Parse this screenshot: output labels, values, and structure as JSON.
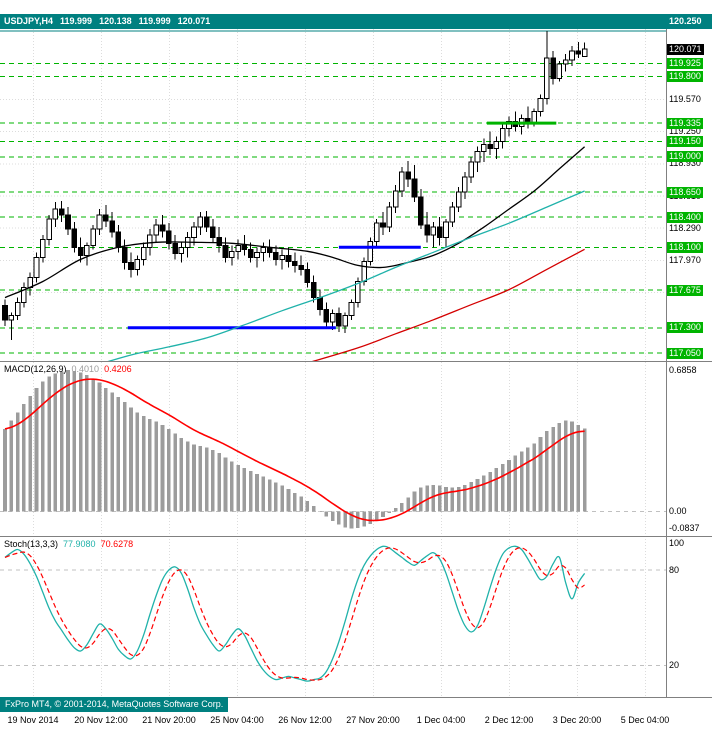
{
  "window": {
    "symbol": "USDJPY,H4",
    "open": "119.999",
    "high": "120.138",
    "low": "119.999",
    "close": "120.071",
    "ask_label": "120.250"
  },
  "colors": {
    "teal": "#008080",
    "level_green": "#00B400",
    "trend_blue": "#0000FF",
    "signal_red": "#FF0000",
    "ma_black": "#000000",
    "ma_green": "#20B2AA",
    "ma_red": "#D40000",
    "macd_bar": "#9C9C9C",
    "stoch_main": "#20B2AA",
    "grid": "#DCDCDC",
    "silver_level": "#C0C0C0",
    "panel_border": "#808080",
    "bar_up_fill": "#FFFFFF",
    "bar_down_fill": "#000000"
  },
  "chart_data": [
    {
      "type": "candlestick",
      "symbol": "USDJPY",
      "timeframe": "H4",
      "ylim": [
        116.97,
        120.27
      ],
      "y_ticks": [
        119.57,
        119.25,
        118.93,
        118.61,
        118.29,
        117.97,
        117.65
      ],
      "level_lines": [
        119.925,
        119.8,
        119.335,
        119.15,
        119.0,
        118.65,
        118.4,
        118.1,
        117.675,
        117.3,
        117.05
      ],
      "ask_line": 120.25,
      "bid_price": 120.071,
      "candles_ohlc": [
        [
          117.52,
          117.58,
          117.32,
          117.38
        ],
        [
          117.38,
          117.45,
          117.18,
          117.42
        ],
        [
          117.42,
          117.6,
          117.38,
          117.55
        ],
        [
          117.55,
          117.75,
          117.5,
          117.7
        ],
        [
          117.7,
          117.85,
          117.62,
          117.8
        ],
        [
          117.8,
          118.05,
          117.75,
          118.0
        ],
        [
          118.0,
          118.22,
          117.95,
          118.18
        ],
        [
          118.18,
          118.42,
          118.12,
          118.38
        ],
        [
          118.38,
          118.55,
          118.3,
          118.48
        ],
        [
          118.48,
          118.56,
          118.35,
          118.42
        ],
        [
          118.42,
          118.5,
          118.22,
          118.28
        ],
        [
          118.28,
          118.35,
          118.05,
          118.1
        ],
        [
          118.1,
          118.2,
          117.95,
          118.02
        ],
        [
          118.02,
          118.15,
          117.92,
          118.12
        ],
        [
          118.12,
          118.32,
          118.08,
          118.28
        ],
        [
          118.28,
          118.48,
          118.22,
          118.42
        ],
        [
          118.42,
          118.52,
          118.3,
          118.36
        ],
        [
          118.36,
          118.45,
          118.2,
          118.25
        ],
        [
          118.25,
          118.32,
          118.05,
          118.1
        ],
        [
          118.1,
          118.18,
          117.88,
          117.95
        ],
        [
          117.95,
          118.05,
          117.8,
          117.88
        ],
        [
          117.88,
          118.02,
          117.82,
          117.98
        ],
        [
          117.98,
          118.15,
          117.92,
          118.1
        ],
        [
          118.1,
          118.28,
          118.02,
          118.22
        ],
        [
          118.22,
          118.38,
          118.15,
          118.32
        ],
        [
          118.32,
          118.42,
          118.2,
          118.26
        ],
        [
          118.26,
          118.34,
          118.08,
          118.14
        ],
        [
          118.14,
          118.22,
          117.98,
          118.04
        ],
        [
          118.04,
          118.16,
          117.95,
          118.1
        ],
        [
          118.1,
          118.25,
          118.0,
          118.2
        ],
        [
          118.2,
          118.35,
          118.12,
          118.3
        ],
        [
          118.3,
          118.45,
          118.22,
          118.4
        ],
        [
          118.4,
          118.46,
          118.25,
          118.3
        ],
        [
          118.3,
          118.38,
          118.15,
          118.2
        ],
        [
          118.2,
          118.3,
          118.05,
          118.12
        ],
        [
          118.12,
          118.2,
          117.95,
          118.0
        ],
        [
          118.0,
          118.12,
          117.92,
          118.06
        ],
        [
          118.06,
          118.18,
          117.98,
          118.12
        ],
        [
          118.12,
          118.22,
          118.02,
          118.08
        ],
        [
          118.08,
          118.15,
          117.95,
          118.0
        ],
        [
          118.0,
          118.1,
          117.9,
          118.05
        ],
        [
          118.05,
          118.15,
          117.96,
          118.1
        ],
        [
          118.1,
          118.18,
          118.0,
          118.05
        ],
        [
          118.05,
          118.12,
          117.92,
          117.98
        ],
        [
          117.98,
          118.08,
          117.88,
          118.02
        ],
        [
          118.02,
          118.1,
          117.9,
          117.96
        ],
        [
          117.96,
          118.05,
          117.85,
          117.92
        ],
        [
          117.92,
          118.02,
          117.82,
          117.88
        ],
        [
          117.88,
          117.95,
          117.7,
          117.75
        ],
        [
          117.75,
          117.82,
          117.55,
          117.6
        ],
        [
          117.6,
          117.68,
          117.42,
          117.48
        ],
        [
          117.48,
          117.55,
          117.3,
          117.36
        ],
        [
          117.36,
          117.48,
          117.28,
          117.44
        ],
        [
          117.44,
          117.5,
          117.26,
          117.32
        ],
        [
          117.32,
          117.45,
          117.25,
          117.42
        ],
        [
          117.42,
          117.58,
          117.38,
          117.55
        ],
        [
          117.55,
          117.8,
          117.5,
          117.76
        ],
        [
          117.76,
          118.0,
          117.72,
          117.96
        ],
        [
          117.96,
          118.2,
          117.92,
          118.16
        ],
        [
          118.16,
          118.38,
          118.1,
          118.34
        ],
        [
          118.34,
          118.45,
          118.22,
          118.3
        ],
        [
          118.3,
          118.55,
          118.25,
          118.5
        ],
        [
          118.5,
          118.72,
          118.44,
          118.66
        ],
        [
          118.66,
          118.9,
          118.6,
          118.85
        ],
        [
          118.85,
          118.96,
          118.7,
          118.78
        ],
        [
          118.78,
          118.92,
          118.55,
          118.6
        ],
        [
          118.6,
          118.68,
          118.28,
          118.32
        ],
        [
          118.32,
          118.45,
          118.15,
          118.22
        ],
        [
          118.22,
          118.35,
          118.1,
          118.3
        ],
        [
          118.3,
          118.4,
          118.12,
          118.2
        ],
        [
          118.2,
          118.38,
          118.1,
          118.35
        ],
        [
          118.35,
          118.55,
          118.3,
          118.5
        ],
        [
          118.5,
          118.7,
          118.45,
          118.65
        ],
        [
          118.65,
          118.85,
          118.58,
          118.8
        ],
        [
          118.8,
          119.0,
          118.74,
          118.95
        ],
        [
          118.95,
          119.1,
          118.85,
          119.05
        ],
        [
          119.05,
          119.18,
          118.95,
          119.12
        ],
        [
          119.12,
          119.25,
          119.02,
          119.08
        ],
        [
          119.08,
          119.2,
          118.98,
          119.15
        ],
        [
          119.15,
          119.32,
          119.08,
          119.28
        ],
        [
          119.28,
          119.4,
          119.2,
          119.35
        ],
        [
          119.35,
          119.45,
          119.25,
          119.3
        ],
        [
          119.3,
          119.42,
          119.22,
          119.38
        ],
        [
          119.38,
          119.5,
          119.28,
          119.33
        ],
        [
          119.33,
          119.48,
          119.3,
          119.45
        ],
        [
          119.45,
          119.62,
          119.4,
          119.58
        ],
        [
          119.58,
          120.25,
          119.52,
          119.98
        ],
        [
          119.98,
          120.05,
          119.72,
          119.78
        ],
        [
          119.78,
          119.95,
          119.75,
          119.92
        ],
        [
          119.92,
          120.02,
          119.85,
          119.96
        ],
        [
          119.96,
          120.1,
          119.9,
          120.05
        ],
        [
          120.05,
          120.14,
          119.98,
          120.02
        ],
        [
          119.999,
          120.138,
          119.999,
          120.071
        ]
      ],
      "moving_averages": [
        {
          "name": "ma-fast-black",
          "color_key": "ma_black",
          "points": [
            [
              0,
              117.6
            ],
            [
              6,
              117.76
            ],
            [
              12,
              117.98
            ],
            [
              18,
              118.1
            ],
            [
              24,
              118.15
            ],
            [
              30,
              118.15
            ],
            [
              36,
              118.14
            ],
            [
              42,
              118.1
            ],
            [
              48,
              118.06
            ],
            [
              52,
              118.0
            ],
            [
              56,
              117.92
            ],
            [
              60,
              117.9
            ],
            [
              64,
              117.95
            ],
            [
              68,
              118.02
            ],
            [
              72,
              118.14
            ],
            [
              76,
              118.3
            ],
            [
              80,
              118.48
            ],
            [
              84,
              118.66
            ],
            [
              88,
              118.88
            ],
            [
              92,
              119.1
            ]
          ]
        },
        {
          "name": "ma-mid-green",
          "color_key": "ma_green",
          "points": [
            [
              14,
              116.92
            ],
            [
              20,
              117.03
            ],
            [
              26,
              117.11
            ],
            [
              32,
              117.2
            ],
            [
              38,
              117.33
            ],
            [
              44,
              117.47
            ],
            [
              50,
              117.6
            ],
            [
              56,
              117.74
            ],
            [
              62,
              117.9
            ],
            [
              68,
              118.05
            ],
            [
              74,
              118.2
            ],
            [
              80,
              118.34
            ],
            [
              86,
              118.5
            ],
            [
              92,
              118.66
            ]
          ]
        },
        {
          "name": "ma-slow-red",
          "color_key": "ma_red",
          "points": [
            [
              48,
              116.95
            ],
            [
              56,
              117.1
            ],
            [
              62,
              117.24
            ],
            [
              68,
              117.38
            ],
            [
              74,
              117.53
            ],
            [
              80,
              117.68
            ],
            [
              86,
              117.88
            ],
            [
              92,
              118.08
            ]
          ]
        }
      ],
      "trendlines": [
        {
          "name": "support-117300",
          "price": 117.3,
          "from_index": 19.5,
          "to_index": 52.5,
          "color_key": "trend_blue",
          "width": 3
        },
        {
          "name": "support-118100",
          "price": 118.1,
          "from_index": 53,
          "to_index": 66,
          "color_key": "trend_blue",
          "width": 3
        },
        {
          "name": "support-119335",
          "price": 119.335,
          "from_index": 76.5,
          "to_index": 87.5,
          "color_key": "level_green",
          "width": 3
        }
      ]
    },
    {
      "type": "macd_histogram",
      "name": "MACD(12,26,9)",
      "value_main": "0.4010",
      "value_signal": "0.4206",
      "ylim": [
        -0.12,
        0.73
      ],
      "axis_labels": [
        "0.6858",
        "0.00",
        "-0.0837"
      ],
      "signal_ema_period": 9,
      "values": [
        0.4,
        0.44,
        0.48,
        0.52,
        0.56,
        0.6,
        0.63,
        0.655,
        0.67,
        0.68,
        0.6858,
        0.682,
        0.675,
        0.662,
        0.645,
        0.625,
        0.6,
        0.578,
        0.555,
        0.53,
        0.505,
        0.48,
        0.462,
        0.448,
        0.435,
        0.42,
        0.4,
        0.378,
        0.355,
        0.338,
        0.325,
        0.318,
        0.31,
        0.298,
        0.282,
        0.262,
        0.242,
        0.225,
        0.21,
        0.195,
        0.18,
        0.168,
        0.155,
        0.14,
        0.125,
        0.108,
        0.09,
        0.072,
        0.05,
        0.025,
        0.0,
        -0.025,
        -0.048,
        -0.065,
        -0.078,
        -0.0837,
        -0.082,
        -0.075,
        -0.062,
        -0.045,
        -0.028,
        -0.008,
        0.015,
        0.04,
        0.068,
        0.095,
        0.115,
        0.125,
        0.128,
        0.125,
        0.118,
        0.115,
        0.118,
        0.128,
        0.142,
        0.158,
        0.175,
        0.19,
        0.21,
        0.23,
        0.25,
        0.27,
        0.29,
        0.31,
        0.33,
        0.36,
        0.39,
        0.41,
        0.43,
        0.44,
        0.435,
        0.42,
        0.401
      ]
    },
    {
      "type": "stochastic",
      "name": "Stoch(13,3,3)",
      "value_main": "77.9080",
      "value_signal": "70.6278",
      "ylim": [
        0,
        101.5
      ],
      "levels": [
        80,
        20
      ],
      "axis_labels": [
        "100",
        "80",
        "20"
      ],
      "signal_sma_period": 3,
      "main": [
        88,
        91,
        93,
        90,
        84,
        76,
        66,
        56,
        48,
        42,
        36,
        31,
        29,
        33,
        40,
        46,
        43,
        37,
        30,
        26,
        24,
        29,
        39,
        52,
        64,
        74,
        80,
        82,
        78,
        68,
        56,
        46,
        39,
        33,
        29,
        33,
        39,
        43,
        39,
        31,
        23,
        17,
        13,
        11,
        12,
        13,
        12,
        11,
        10,
        11,
        12,
        16,
        24,
        35,
        48,
        62,
        74,
        83,
        89,
        93,
        95,
        94,
        91,
        88,
        85,
        83,
        86,
        89,
        91,
        87,
        78,
        66,
        54,
        45,
        41,
        45,
        56,
        69,
        81,
        90,
        94,
        95,
        93,
        87,
        80,
        74,
        76,
        84,
        88,
        72,
        61.9,
        72,
        77.908
      ]
    }
  ],
  "footer": {
    "copyright": "FxPro MT4, © 2001-2014, MetaQuotes Software Corp."
  },
  "time_axis": {
    "labels": [
      "19 Nov 2014",
      "20 Nov 12:00",
      "21 Nov 20:00",
      "25 Nov 04:00",
      "26 Nov 12:00",
      "27 Nov 20:00",
      "1 Dec 04:00",
      "2 Dec 12:00",
      "3 Dec 20:00",
      "5 Dec 04:00"
    ]
  }
}
